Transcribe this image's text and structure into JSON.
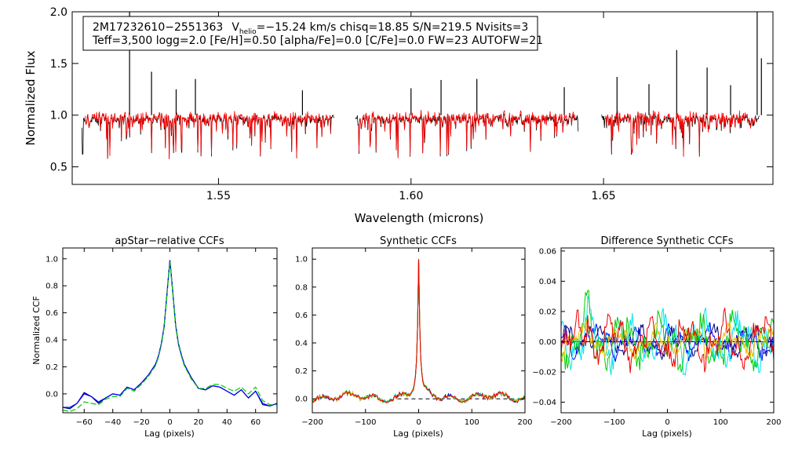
{
  "chart_data": [
    {
      "id": "main",
      "type": "line",
      "title": "",
      "xlabel": "Wavelength (microns)",
      "ylabel": "Normalized Flux",
      "xlim": [
        1.512,
        1.694
      ],
      "ylim": [
        0.33,
        2.0
      ],
      "xticks": [
        1.55,
        1.6,
        1.65
      ],
      "xtick_labels": [
        "1.55",
        "1.60",
        "1.65"
      ],
      "yticks": [
        0.5,
        1.0,
        1.5,
        2.0
      ],
      "ytick_labels": [
        "0.5",
        "1.0",
        "1.5",
        "2.0"
      ],
      "segments": [
        [
          1.5145,
          1.58
        ],
        [
          1.5855,
          1.6435
        ],
        [
          1.6495,
          1.6905
        ]
      ],
      "continuum": 0.92,
      "series": [
        {
          "name": "observed",
          "color": "#000000"
        },
        {
          "name": "model",
          "color": "#ff0000"
        }
      ],
      "spikes": [
        {
          "x": 1.5269,
          "y": 2.0
        },
        {
          "x": 1.5326,
          "y": 1.42
        },
        {
          "x": 1.539,
          "y": 1.25
        },
        {
          "x": 1.544,
          "y": 1.35
        },
        {
          "x": 1.5718,
          "y": 1.24
        },
        {
          "x": 1.6,
          "y": 1.26
        },
        {
          "x": 1.6078,
          "y": 1.34
        },
        {
          "x": 1.6171,
          "y": 1.35
        },
        {
          "x": 1.6398,
          "y": 1.27
        },
        {
          "x": 1.6535,
          "y": 1.37
        },
        {
          "x": 1.6618,
          "y": 1.3
        },
        {
          "x": 1.669,
          "y": 1.63
        },
        {
          "x": 1.6769,
          "y": 1.46
        },
        {
          "x": 1.683,
          "y": 1.29
        },
        {
          "x": 1.6899,
          "y": 2.0
        },
        {
          "x": 1.691,
          "y": 1.55
        }
      ],
      "annotation": {
        "line1": {
          "star": "2M17232610−2551363",
          "v_main": "V",
          "v_sub": "helio",
          "v_rest": "=−15.24 km/s  chisq=18.85  S/N=219.5  Nvisits=3"
        },
        "line2": "Teff=3,500 logg=2.0 [Fe/H]=0.50 [alpha/Fe]=0.0 [C/Fe]=0.0 FW=23 AUTOFW=21"
      }
    },
    {
      "id": "apstar",
      "type": "line",
      "title": "apStar−relative CCFs",
      "xlabel": "Lag (pixels)",
      "ylabel": "Normalized CCF",
      "xlim": [
        -75,
        75
      ],
      "ylim": [
        -0.14,
        1.08
      ],
      "xticks": [
        -60,
        -40,
        -20,
        0,
        20,
        40,
        60
      ],
      "xtick_labels": [
        "−60",
        "−40",
        "−20",
        "0",
        "20",
        "40",
        "60"
      ],
      "yticks": [
        0.0,
        0.2,
        0.4,
        0.6,
        0.8,
        1.0
      ],
      "ytick_labels": [
        "0.0",
        "0.2",
        "0.4",
        "0.6",
        "0.8",
        "1.0"
      ],
      "series": [
        {
          "name": "navy",
          "color": "#000080",
          "x": [
            -75,
            -70,
            -65,
            -60,
            -55,
            -50,
            -45,
            -40,
            -35,
            -30,
            -25,
            -20,
            -15,
            -10,
            -8,
            -6,
            -4,
            -2,
            0,
            2,
            4,
            6,
            8,
            10,
            15,
            20,
            25,
            30,
            35,
            40,
            45,
            50,
            55,
            60,
            65,
            70,
            75
          ],
          "y": [
            -0.1,
            -0.11,
            -0.07,
            0.01,
            -0.02,
            -0.07,
            -0.03,
            0.0,
            -0.01,
            0.05,
            0.03,
            0.08,
            0.14,
            0.22,
            0.28,
            0.37,
            0.5,
            0.75,
            0.99,
            0.76,
            0.51,
            0.37,
            0.29,
            0.22,
            0.12,
            0.04,
            0.03,
            0.06,
            0.05,
            0.02,
            -0.01,
            0.03,
            -0.03,
            0.02,
            -0.08,
            -0.09,
            -0.07
          ]
        },
        {
          "name": "blue",
          "color": "#0000ff",
          "x": [
            -75,
            -70,
            -65,
            -60,
            -55,
            -50,
            -45,
            -40,
            -35,
            -30,
            -25,
            -20,
            -15,
            -10,
            -8,
            -6,
            -4,
            -2,
            0,
            2,
            4,
            6,
            8,
            10,
            15,
            20,
            25,
            30,
            35,
            40,
            45,
            50,
            55,
            60,
            65,
            70,
            75
          ],
          "y": [
            -0.1,
            -0.1,
            -0.07,
            0.0,
            -0.02,
            -0.06,
            -0.03,
            0.0,
            -0.01,
            0.05,
            0.03,
            0.08,
            0.14,
            0.22,
            0.28,
            0.37,
            0.5,
            0.75,
            0.99,
            0.76,
            0.51,
            0.37,
            0.29,
            0.22,
            0.12,
            0.04,
            0.03,
            0.06,
            0.05,
            0.02,
            -0.01,
            0.03,
            -0.03,
            0.02,
            -0.07,
            -0.09,
            -0.07
          ]
        },
        {
          "name": "green",
          "color": "#00cc00",
          "x": [
            -75,
            -70,
            -65,
            -60,
            -55,
            -50,
            -45,
            -40,
            -35,
            -30,
            -25,
            -20,
            -15,
            -10,
            -8,
            -6,
            -4,
            -2,
            0,
            2,
            4,
            6,
            8,
            10,
            15,
            20,
            25,
            30,
            35,
            40,
            45,
            50,
            55,
            60,
            65,
            70,
            75
          ],
          "y": [
            -0.12,
            -0.13,
            -0.11,
            -0.06,
            -0.07,
            -0.08,
            -0.04,
            -0.02,
            -0.02,
            0.04,
            0.02,
            0.07,
            0.13,
            0.21,
            0.27,
            0.36,
            0.49,
            0.74,
            0.98,
            0.75,
            0.5,
            0.36,
            0.28,
            0.21,
            0.11,
            0.04,
            0.04,
            0.07,
            0.07,
            0.04,
            0.02,
            0.05,
            0.0,
            0.05,
            -0.05,
            -0.08,
            -0.08
          ]
        }
      ]
    },
    {
      "id": "synth",
      "type": "line",
      "title": "Synthetic CCFs",
      "xlabel": "Lag (pixels)",
      "ylabel": "",
      "xlim": [
        -200,
        200
      ],
      "ylim": [
        -0.1,
        1.08
      ],
      "xticks": [
        -200,
        -100,
        0,
        100,
        200
      ],
      "xtick_labels": [
        "−200",
        "−100",
        "0",
        "100",
        "200"
      ],
      "yticks": [
        0.0,
        0.2,
        0.4,
        0.6,
        0.8,
        1.0
      ],
      "ytick_labels": [
        "0.0",
        "0.2",
        "0.4",
        "0.6",
        "0.8",
        "1.0"
      ],
      "zero_line": 0.0,
      "series": [
        {
          "name": "navy",
          "color": "#000080"
        },
        {
          "name": "blue",
          "color": "#0000ff"
        },
        {
          "name": "cyan",
          "color": "#00e5ee"
        },
        {
          "name": "green",
          "color": "#00cc00"
        },
        {
          "name": "yellow",
          "color": "#e6c000"
        },
        {
          "name": "red",
          "color": "#ee0000"
        }
      ]
    },
    {
      "id": "diff",
      "type": "line",
      "title": "Difference Synthetic CCFs",
      "xlabel": "Lag (pixels)",
      "ylabel": "",
      "xlim": [
        -200,
        200
      ],
      "ylim": [
        -0.047,
        0.062
      ],
      "xticks": [
        -200,
        -100,
        0,
        100,
        200
      ],
      "xtick_labels": [
        "−200",
        "−100",
        "0",
        "100",
        "200"
      ],
      "yticks": [
        -0.04,
        -0.02,
        0.0,
        0.02,
        0.04,
        0.06
      ],
      "ytick_labels": [
        "−0.04",
        "−0.02",
        "0.00",
        "0.02",
        "0.04",
        "0.06"
      ],
      "zero_line": 0.0,
      "series": [
        {
          "name": "navy",
          "color": "#000080"
        },
        {
          "name": "blue",
          "color": "#0000ff"
        },
        {
          "name": "cyan",
          "color": "#00e5ee"
        },
        {
          "name": "green",
          "color": "#00cc00"
        },
        {
          "name": "yellow",
          "color": "#e6c000"
        },
        {
          "name": "red",
          "color": "#ee0000"
        }
      ]
    }
  ]
}
